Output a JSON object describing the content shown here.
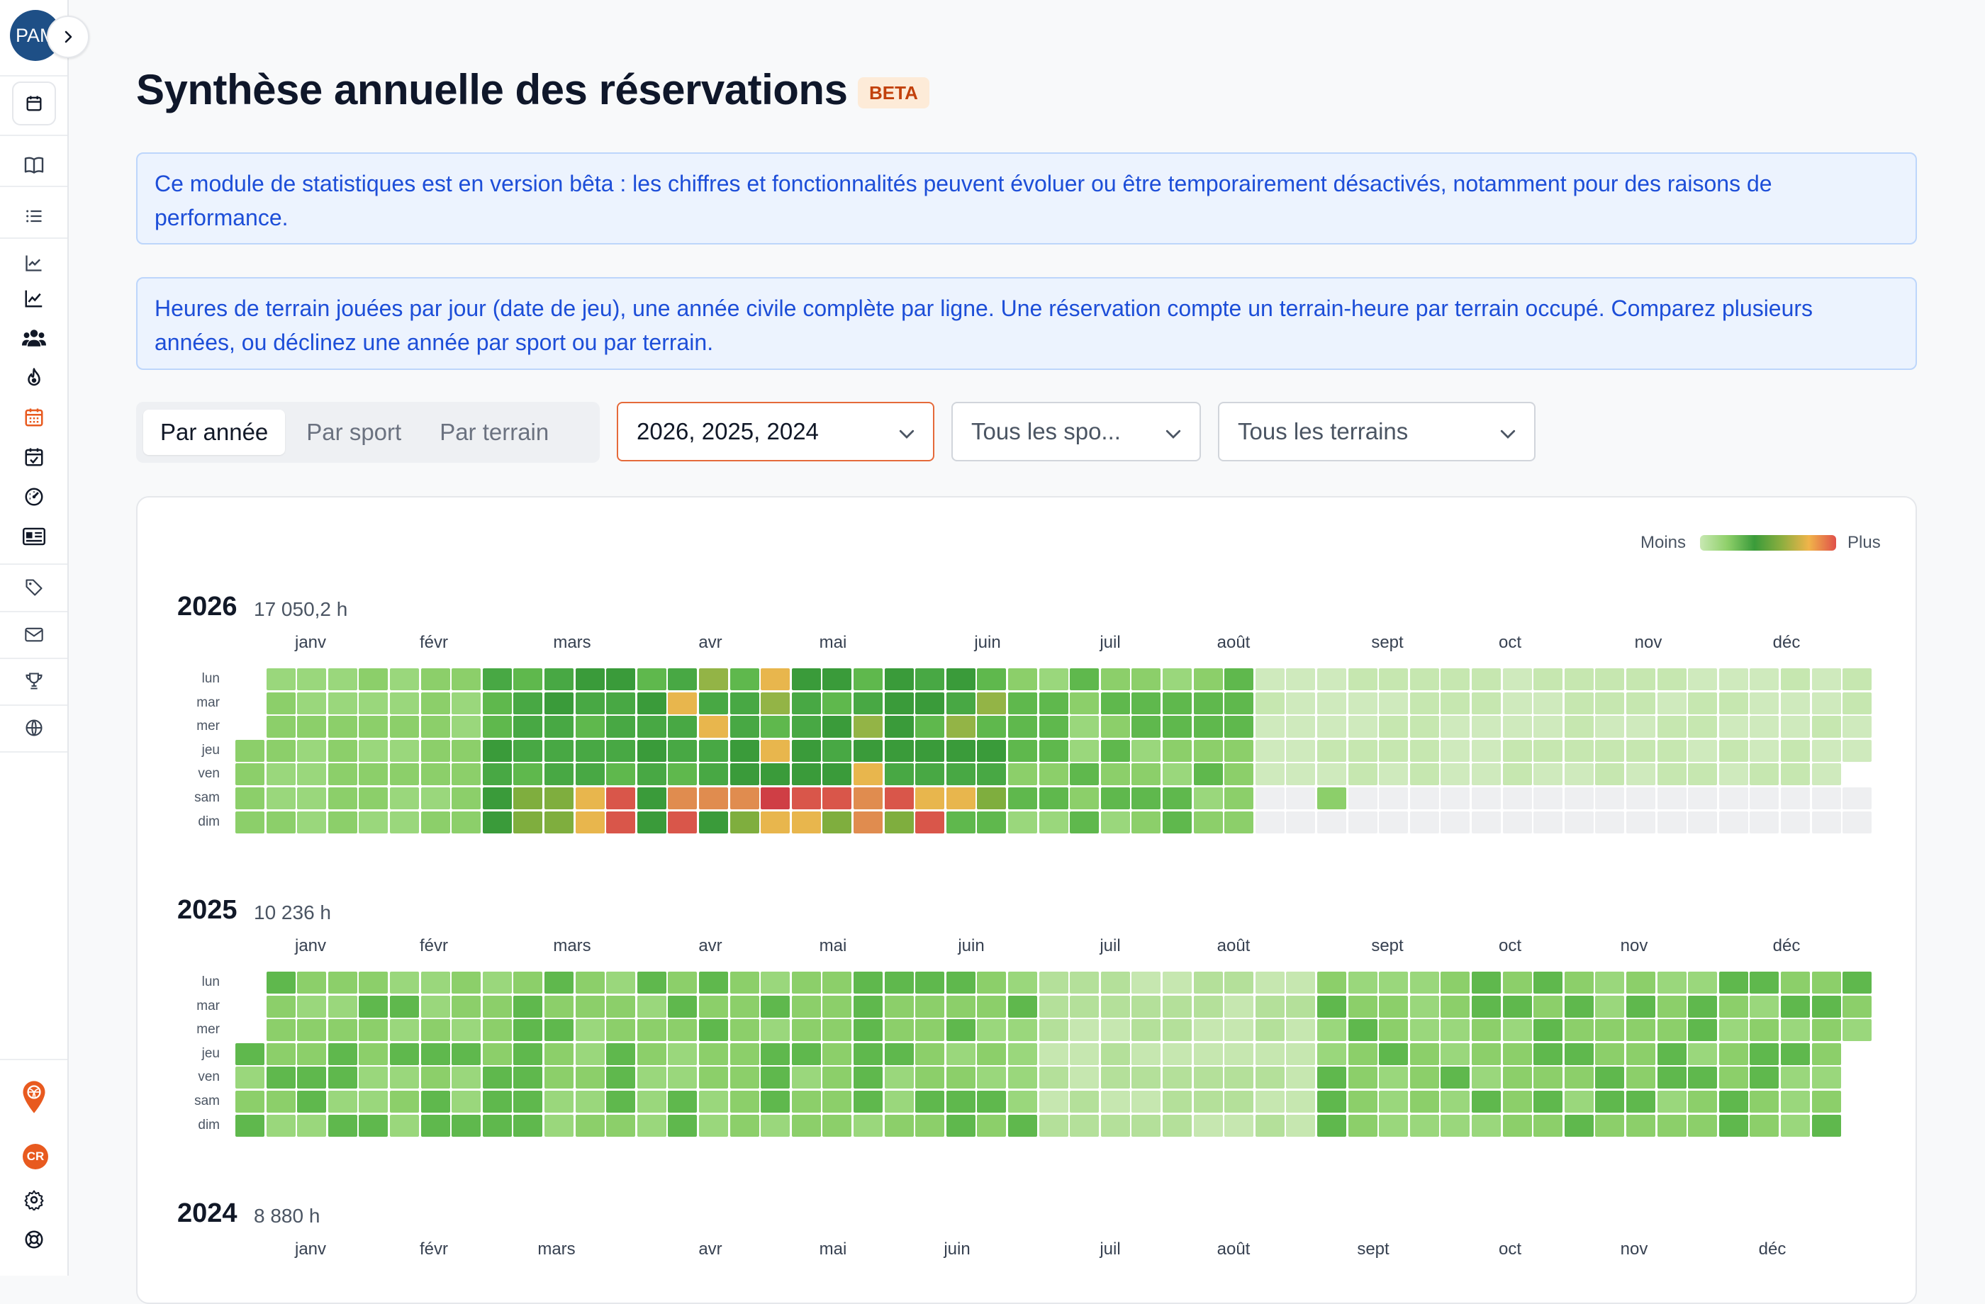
{
  "sidebar": {
    "avatar_text": "PAM",
    "user_initials": "CR",
    "items": [
      {
        "name": "calendar-icon"
      },
      {
        "name": "book-icon"
      },
      {
        "name": "list-icon"
      },
      {
        "name": "chart-line-icon"
      },
      {
        "name": "chart-line-2-icon"
      },
      {
        "name": "users-icon"
      },
      {
        "name": "flame-icon"
      },
      {
        "name": "calendar-grid-icon"
      },
      {
        "name": "calendar-check-icon"
      },
      {
        "name": "gauge-icon"
      },
      {
        "name": "id-card-icon"
      },
      {
        "name": "tag-icon"
      },
      {
        "name": "mail-icon"
      },
      {
        "name": "trophy-icon"
      },
      {
        "name": "globe-icon"
      },
      {
        "name": "location-pin-icon"
      },
      {
        "name": "settings-icon"
      },
      {
        "name": "help-icon"
      }
    ],
    "active_color": "#e85a1f"
  },
  "page": {
    "title": "Synthèse annuelle des réservations",
    "badge": "BETA"
  },
  "notices": {
    "beta_notice": "Ce module de statistiques est en version bêta : les chiffres et fonctionnalités peuvent évoluer ou être temporairement désactivés, notamment pour des raisons de performance.",
    "description": "Heures de terrain jouées par jour (date de jeu), une année civile complète par ligne. Une réservation compte un terrain-heure par terrain occupé. Comparez plusieurs années, ou déclinez une année par sport ou par terrain."
  },
  "controls": {
    "tabs": [
      "Par année",
      "Par sport",
      "Par terrain"
    ],
    "active_tab": "Par année",
    "years_select": "2026, 2025, 2024",
    "sport_select": "Tous les spo...",
    "terrain_select": "Tous les terrains"
  },
  "legend": {
    "less": "Moins",
    "more": "Plus",
    "colors": [
      "#c8e8b2",
      "#8fd06a",
      "#3a9b3a",
      "#8cae3f",
      "#f0b44a",
      "#e0504a"
    ]
  },
  "chart_data": {
    "type": "heatmap",
    "weekday_labels": [
      "lun",
      "mar",
      "mer",
      "jeu",
      "ven",
      "sam",
      "dim"
    ],
    "years": [
      {
        "year": "2026",
        "total": "17 050,2 h",
        "months": [
          "janv",
          "févr",
          "mars",
          "avr",
          "mai",
          "juin",
          "juil",
          "août",
          "sept",
          "oct",
          "nov",
          "déc"
        ],
        "data_until": "août"
      },
      {
        "year": "2025",
        "total": "10 236 h",
        "months": [
          "janv",
          "févr",
          "mars",
          "avr",
          "mai",
          "juin",
          "juil",
          "août",
          "sept",
          "oct",
          "nov",
          "déc"
        ]
      },
      {
        "year": "2024",
        "total": "8 880 h",
        "months": [
          "janv",
          "févr",
          "mars",
          "avr",
          "mai",
          "juin",
          "juil",
          "août",
          "sept",
          "oct",
          "nov",
          "déc"
        ]
      }
    ]
  }
}
